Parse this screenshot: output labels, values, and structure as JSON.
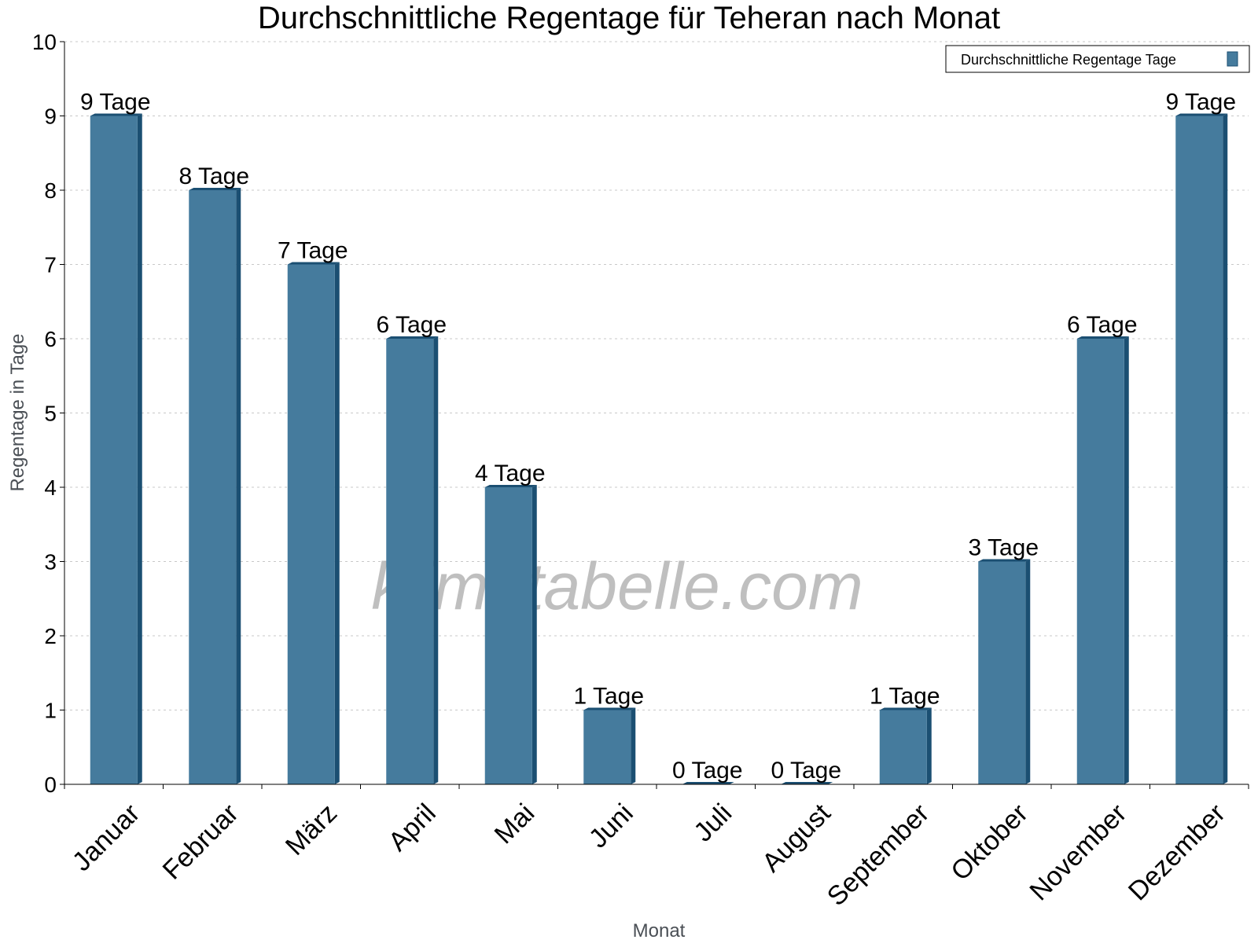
{
  "chart_data": {
    "type": "bar",
    "title": "Durchschnittliche Regentage für Teheran nach Monat",
    "xlabel": "Monat",
    "ylabel": "Regentage in Tage",
    "ylim": [
      0,
      10
    ],
    "yticks": [
      "0",
      "1",
      "2",
      "3",
      "4",
      "5",
      "6",
      "7",
      "8",
      "9",
      "10"
    ],
    "grid": true,
    "legend_position": "top-right",
    "categories": [
      "Januar",
      "Februar",
      "März",
      "April",
      "Mai",
      "Juni",
      "Juli",
      "August",
      "September",
      "Oktober",
      "November",
      "Dezember"
    ],
    "series": [
      {
        "name": "Durchschnittliche Regentage Tage",
        "values": [
          9,
          8,
          7,
          6,
          4,
          1,
          0,
          0,
          1,
          3,
          6,
          9
        ],
        "data_labels": [
          "9 Tage",
          "8 Tage",
          "7 Tage",
          "6 Tage",
          "4 Tage",
          "1 Tage",
          "0 Tage",
          "0 Tage",
          "1 Tage",
          "3 Tage",
          "6 Tage",
          "9 Tage"
        ],
        "color": "#457b9d",
        "edge_color": "#1b4f72"
      }
    ],
    "watermark": "klimatabelle.com"
  }
}
